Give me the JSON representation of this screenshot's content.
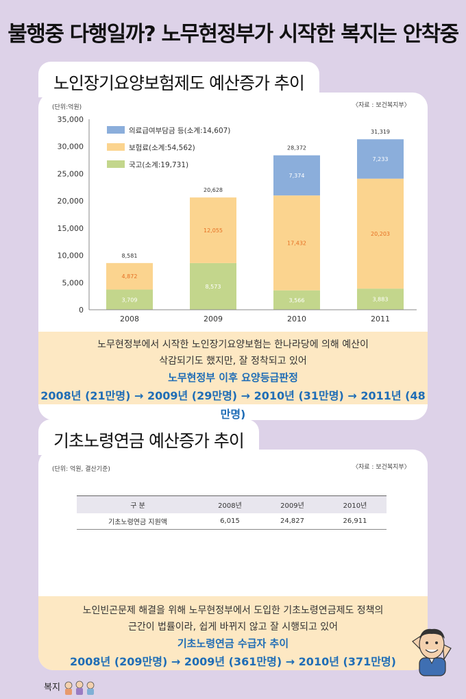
{
  "page": {
    "main_title": "불행중 다행일까? 노무현정부가 시작한 복지는 안착중",
    "footer_label": "복지"
  },
  "section1": {
    "tab_title": "노인장기요양보험제도 예산증가 추이",
    "unit": "(단위:억원)",
    "source": "〈자료 : 보건복지부〉",
    "notes": [
      "노무현정부에서 시작한 노인장기요양보험는 한나라당에 의해 예산이",
      "삭감되기도 했지만, 잘 정착되고 있어"
    ],
    "highlight_title": "노무현정부 이후 요양등급판정",
    "highlight_data": "2008년 (21만명) → 2009년 (29만명) → 2010년 (31만명) → 2011년 (48만명)"
  },
  "chart_data": {
    "type": "bar",
    "stacked": true,
    "categories": [
      "2008",
      "2009",
      "2010",
      "2011"
    ],
    "series": [
      {
        "name": "국고(소계:19,731)",
        "color": "#c3d68c",
        "values": [
          3709,
          8573,
          3566,
          3883
        ],
        "labels": [
          "3,709",
          "8,573",
          "3,566",
          "3,883"
        ]
      },
      {
        "name": "보험료(소계:54,562)",
        "color": "#fbd48f",
        "values": [
          4872,
          12055,
          17432,
          20203
        ],
        "labels": [
          "4,872",
          "12,055",
          "17,432",
          "20,203"
        ]
      },
      {
        "name": "의료급여부담금 등(소계:14,607)",
        "color": "#8baedb",
        "values": [
          0,
          0,
          7374,
          7233
        ],
        "labels": [
          "",
          "",
          "7,374",
          "7,233"
        ]
      }
    ],
    "totals": [
      8581,
      20628,
      28372,
      31319
    ],
    "total_labels": [
      "8,581",
      "20,628",
      "28,372",
      "31,319"
    ],
    "ylim": [
      0,
      35000
    ],
    "yticks": [
      "0",
      "5,000",
      "10,000",
      "15,000",
      "20,000",
      "25,000",
      "30,000",
      "35,000"
    ],
    "legend_position": "top-left",
    "grid": false
  },
  "section2": {
    "tab_title": "기초노령연금  예산증가 추이",
    "unit": "(단위: 억원, 결산기준)",
    "source": "〈자료 : 보건복지부〉",
    "table": {
      "headers": [
        "구    분",
        "2008년",
        "2009년",
        "2010년"
      ],
      "rows": [
        [
          "기초노령연금 지원액",
          "6,015",
          "24,827",
          "26,911"
        ]
      ]
    },
    "notes": [
      "노인빈곤문제 해결을 위해 노무현정부에서 도입한 기초노령연금제도 정책의",
      "근간이 법률이라, 쉽게 바뀌지 않고 잘 시행되고 있어"
    ],
    "highlight_title": "기초노령연금 수급자 추이",
    "highlight_data": "2008년 (209만명) → 2009년 (361만명) → 2010년 (371만명)"
  }
}
